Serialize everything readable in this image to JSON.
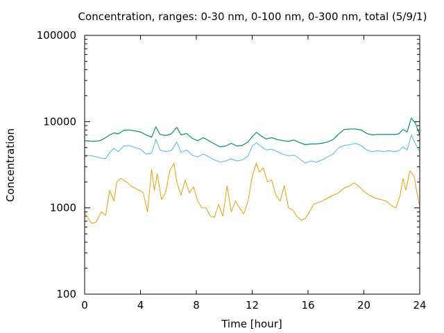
{
  "chart_data": {
    "type": "line",
    "title": "Concentration, ranges: 0-30 nm, 0-100 nm, 0-300 nm, total (5/9/1)",
    "xlabel": "Time [hour]",
    "ylabel": "Concentration",
    "xlim": [
      0,
      24
    ],
    "ylim": [
      100,
      100000
    ],
    "yscale": "log",
    "grid": false,
    "legend": "none",
    "x_ticks": [
      "0",
      "4",
      "8",
      "12",
      "16",
      "20",
      "24"
    ],
    "y_ticks": [
      "100",
      "1000",
      "10000",
      "100000"
    ],
    "series": [
      {
        "color": "#E69F00",
        "x": [
          0,
          0.5,
          0.8,
          1.2,
          1.5,
          1.8,
          2.1,
          2.3,
          2.6,
          3.0,
          3.3,
          3.6,
          3.9,
          4.2,
          4.5,
          4.8,
          5.0,
          5.2,
          5.5,
          5.8,
          6.1,
          6.4,
          6.6,
          6.9,
          7.2,
          7.5,
          7.8,
          8.1,
          8.4,
          8.7,
          9.0,
          9.3,
          9.6,
          9.9,
          10.2,
          10.5,
          10.8,
          11.1,
          11.4,
          11.7,
          12.0,
          12.3,
          12.5,
          12.8,
          13.1,
          13.4,
          13.7,
          14.0,
          14.3,
          14.6,
          14.9,
          15.2,
          15.5,
          15.8,
          16.1,
          16.4,
          16.7,
          17.0,
          17.4,
          17.8,
          18.2,
          18.6,
          19.0,
          19.3,
          19.6,
          20.0,
          20.4,
          20.8,
          21.2,
          21.6,
          22.0,
          22.3,
          22.6,
          22.8,
          23.0,
          23.3,
          23.6,
          23.8,
          24.0
        ],
        "y": [
          880,
          660,
          680,
          900,
          820,
          1600,
          1200,
          2000,
          2200,
          2000,
          1800,
          1700,
          1600,
          1500,
          900,
          2800,
          1600,
          2500,
          1250,
          1500,
          2700,
          3300,
          2000,
          1400,
          2100,
          1500,
          1750,
          1200,
          1000,
          1000,
          800,
          780,
          1100,
          800,
          1800,
          900,
          1200,
          1000,
          850,
          1200,
          2300,
          3300,
          2600,
          2900,
          2000,
          2100,
          1400,
          1200,
          1800,
          1000,
          950,
          800,
          720,
          750,
          900,
          1100,
          1150,
          1200,
          1300,
          1400,
          1500,
          1700,
          1800,
          1950,
          1800,
          1550,
          1400,
          1300,
          1250,
          1200,
          1050,
          1000,
          1400,
          2200,
          1600,
          2700,
          2300,
          1500,
          1050
        ]
      },
      {
        "color": "#56B4E9",
        "x": [
          0,
          0.6,
          1.1,
          1.5,
          1.8,
          2.1,
          2.4,
          2.8,
          3.2,
          3.6,
          4.0,
          4.4,
          4.8,
          5.1,
          5.4,
          5.8,
          6.2,
          6.6,
          6.9,
          7.3,
          7.7,
          8.1,
          8.5,
          8.9,
          9.3,
          9.7,
          10.1,
          10.5,
          10.9,
          11.3,
          11.7,
          12.0,
          12.3,
          12.6,
          13.0,
          13.4,
          13.8,
          14.2,
          14.6,
          15.0,
          15.4,
          15.8,
          16.2,
          16.6,
          17.0,
          17.4,
          17.8,
          18.2,
          18.6,
          19.0,
          19.4,
          19.8,
          20.2,
          20.6,
          21.0,
          21.4,
          21.8,
          22.2,
          22.5,
          22.8,
          23.1,
          23.4,
          23.7,
          24.0
        ],
        "y": [
          4100,
          4000,
          3800,
          3700,
          4400,
          4900,
          4500,
          5200,
          5300,
          5000,
          4800,
          4200,
          4300,
          6200,
          4700,
          4500,
          4600,
          5800,
          4400,
          4700,
          4100,
          3900,
          4200,
          3900,
          3600,
          3400,
          3500,
          3700,
          3500,
          3600,
          4000,
          5200,
          5700,
          5200,
          4700,
          4800,
          4500,
          4200,
          4000,
          4100,
          3700,
          3300,
          3500,
          3400,
          3600,
          3900,
          4200,
          5000,
          5300,
          5400,
          5600,
          5300,
          4700,
          4500,
          4600,
          4500,
          4600,
          4500,
          4600,
          5100,
          4700,
          7000,
          5500,
          4500
        ]
      },
      {
        "color": "#1F3A78",
        "x": [
          0,
          0.6,
          1.1,
          1.5,
          1.8,
          2.1,
          2.4,
          2.8,
          3.2,
          3.6,
          4.0,
          4.4,
          4.8,
          5.1,
          5.4,
          5.8,
          6.2,
          6.6,
          6.9,
          7.3,
          7.7,
          8.1,
          8.5,
          8.9,
          9.3,
          9.7,
          10.1,
          10.5,
          10.9,
          11.3,
          11.7,
          12.0,
          12.3,
          12.6,
          13.0,
          13.4,
          13.8,
          14.2,
          14.6,
          15.0,
          15.4,
          15.8,
          16.2,
          16.6,
          17.0,
          17.4,
          17.8,
          18.2,
          18.6,
          19.0,
          19.4,
          19.8,
          20.2,
          20.6,
          21.0,
          21.4,
          21.8,
          22.2,
          22.5,
          22.8,
          23.1,
          23.4,
          23.7,
          24.0
        ],
        "y": [
          6000,
          5900,
          6000,
          6500,
          7000,
          7400,
          7200,
          7900,
          8000,
          7800,
          7600,
          7000,
          6600,
          8700,
          7100,
          6900,
          7200,
          8600,
          7000,
          7300,
          6400,
          6000,
          6500,
          6000,
          5500,
          5100,
          5200,
          5600,
          5200,
          5300,
          5800,
          6700,
          7500,
          6900,
          6300,
          6500,
          6200,
          6000,
          5900,
          6100,
          5700,
          5400,
          5500,
          5500,
          5600,
          5800,
          6200,
          7200,
          8100,
          8200,
          8200,
          8000,
          7300,
          7000,
          7100,
          7100,
          7100,
          7100,
          7200,
          8100,
          7600,
          11000,
          9500,
          7000
        ]
      },
      {
        "color": "#009E73",
        "x": [
          0,
          0.6,
          1.1,
          1.5,
          1.8,
          2.1,
          2.4,
          2.8,
          3.2,
          3.6,
          4.0,
          4.4,
          4.8,
          5.1,
          5.4,
          5.8,
          6.2,
          6.6,
          6.9,
          7.3,
          7.7,
          8.1,
          8.5,
          8.9,
          9.3,
          9.7,
          10.1,
          10.5,
          10.9,
          11.3,
          11.7,
          12.0,
          12.3,
          12.6,
          13.0,
          13.4,
          13.8,
          14.2,
          14.6,
          15.0,
          15.4,
          15.8,
          16.2,
          16.6,
          17.0,
          17.4,
          17.8,
          18.2,
          18.6,
          19.0,
          19.4,
          19.8,
          20.2,
          20.6,
          21.0,
          21.4,
          21.8,
          22.2,
          22.5,
          22.8,
          23.1,
          23.4,
          23.7,
          24.0
        ],
        "y": [
          6020,
          5920,
          6020,
          6520,
          7020,
          7420,
          7220,
          7920,
          8020,
          7820,
          7620,
          7020,
          6620,
          8720,
          7120,
          6920,
          7220,
          8620,
          7020,
          7320,
          6420,
          6020,
          6520,
          6020,
          5520,
          5120,
          5220,
          5620,
          5220,
          5320,
          5820,
          6720,
          7520,
          6920,
          6320,
          6520,
          6220,
          6020,
          5920,
          6120,
          5720,
          5420,
          5520,
          5520,
          5620,
          5820,
          6220,
          7220,
          8120,
          8220,
          8220,
          8020,
          7320,
          7020,
          7120,
          7120,
          7120,
          7120,
          7220,
          8120,
          7620,
          11020,
          9520,
          7020
        ]
      }
    ]
  }
}
